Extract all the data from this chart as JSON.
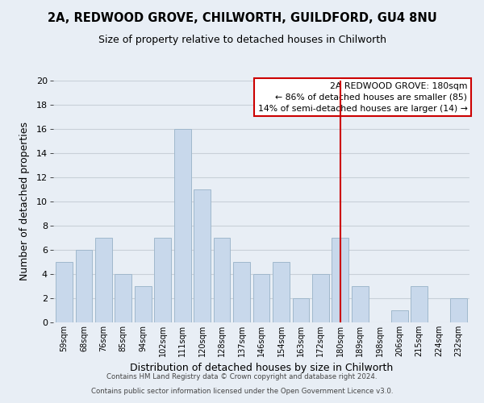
{
  "title": "2A, REDWOOD GROVE, CHILWORTH, GUILDFORD, GU4 8NU",
  "subtitle": "Size of property relative to detached houses in Chilworth",
  "xlabel": "Distribution of detached houses by size in Chilworth",
  "ylabel": "Number of detached properties",
  "bar_labels": [
    "59sqm",
    "68sqm",
    "76sqm",
    "85sqm",
    "94sqm",
    "102sqm",
    "111sqm",
    "120sqm",
    "128sqm",
    "137sqm",
    "146sqm",
    "154sqm",
    "163sqm",
    "172sqm",
    "180sqm",
    "189sqm",
    "198sqm",
    "206sqm",
    "215sqm",
    "224sqm",
    "232sqm"
  ],
  "bar_heights": [
    5,
    6,
    7,
    4,
    3,
    7,
    16,
    11,
    7,
    5,
    4,
    5,
    2,
    4,
    7,
    3,
    0,
    1,
    3,
    0,
    2
  ],
  "bar_color": "#c8d8eb",
  "bar_edgecolor": "#a0b8cc",
  "background_color": "#e8eef5",
  "plot_bg_color": "#e8eef5",
  "grid_color": "#c8d0d8",
  "vline_x": 14,
  "vline_color": "#cc0000",
  "ylim": [
    0,
    20
  ],
  "yticks": [
    0,
    2,
    4,
    6,
    8,
    10,
    12,
    14,
    16,
    18,
    20
  ],
  "annotation_title": "2A REDWOOD GROVE: 180sqm",
  "annotation_line1": "← 86% of detached houses are smaller (85)",
  "annotation_line2": "14% of semi-detached houses are larger (14) →",
  "footnote1": "Contains HM Land Registry data © Crown copyright and database right 2024.",
  "footnote2": "Contains public sector information licensed under the Open Government Licence v3.0."
}
